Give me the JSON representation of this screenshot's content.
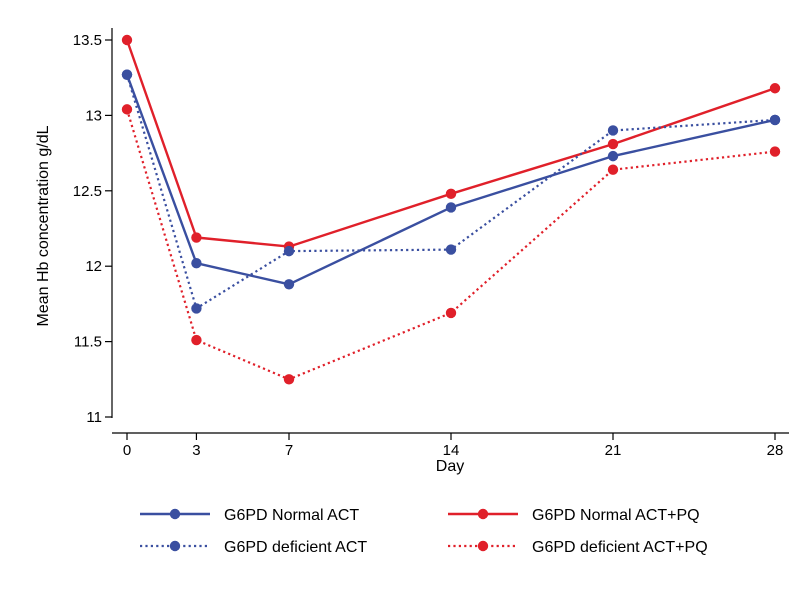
{
  "chart_data": {
    "type": "line",
    "title": "",
    "xlabel": "Day",
    "ylabel": "Mean Hb concentration g/dL",
    "x": [
      0,
      3,
      7,
      14,
      21,
      28
    ],
    "x_tick_labels": [
      "0",
      "3",
      "7",
      "14",
      "21",
      "28"
    ],
    "xlim": [
      0,
      28
    ],
    "y_ticks": [
      11,
      11.5,
      12,
      12.5,
      13,
      13.5
    ],
    "y_tick_labels": [
      "11",
      "11.5",
      "12",
      "12.5",
      "13",
      "13.5"
    ],
    "ylim": [
      11,
      13.5
    ],
    "grid": false,
    "legend_position": "bottom",
    "series": [
      {
        "name": "G6PD Normal ACT",
        "color": "#3a4fa0",
        "line_style": "solid",
        "values": [
          13.27,
          12.02,
          11.88,
          12.39,
          12.73,
          12.97
        ]
      },
      {
        "name": "G6PD Normal ACT+PQ",
        "color": "#e0202a",
        "line_style": "solid",
        "values": [
          13.5,
          12.19,
          12.13,
          12.48,
          12.81,
          13.18
        ]
      },
      {
        "name": "G6PD deficient ACT",
        "color": "#3a4fa0",
        "line_style": "dotted",
        "values": [
          13.27,
          11.72,
          12.1,
          12.11,
          12.9,
          12.97
        ]
      },
      {
        "name": "G6PD deficient ACT+PQ",
        "color": "#e0202a",
        "line_style": "dotted",
        "values": [
          13.04,
          11.51,
          11.25,
          11.69,
          12.64,
          12.76
        ]
      }
    ]
  }
}
